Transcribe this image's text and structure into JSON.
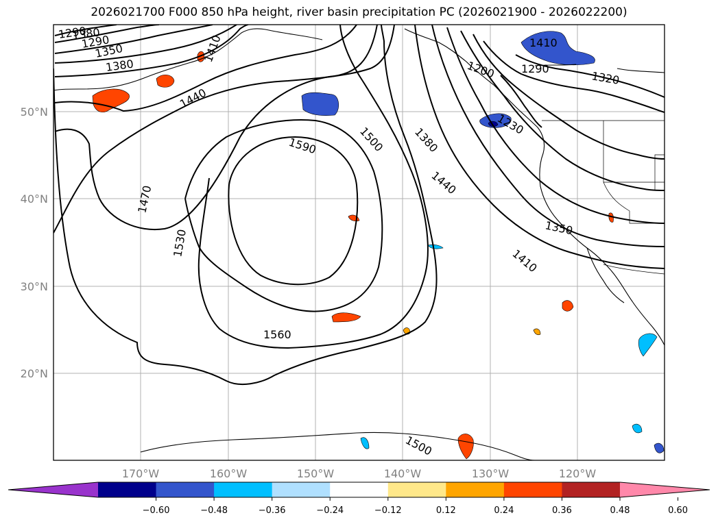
{
  "title": "2026021700 F000 850 hPa height, river basin precipitation PC (2026021900 - 2026022200)",
  "map": {
    "lon_ticks": [
      "170°W",
      "160°W",
      "150°W",
      "140°W",
      "130°W",
      "120°W"
    ],
    "lat_ticks": [
      "50°N",
      "40°N",
      "30°N",
      "20°N"
    ],
    "extent": {
      "lon": [
        -180,
        -110
      ],
      "lat": [
        10,
        60
      ]
    },
    "grid": true
  },
  "contour_labels": {
    "c1290a": "1290",
    "c1380a": "1380",
    "c1290b": "1290",
    "c1350a": "1350",
    "c1380b": "1380",
    "c1410a": "1410",
    "c1440a": "1440",
    "c1590": "1590",
    "c1500a": "1500",
    "c1380c": "1380",
    "c1440b": "1440",
    "c1470": "1470",
    "c1530": "1530",
    "c1560": "1560",
    "c1500b": "1500",
    "c1410b": "1410",
    "c1290c": "1290",
    "c1320": "1320",
    "c1230": "1230",
    "c1350b": "1350",
    "c1410c": "1410",
    "c1200": "1200"
  },
  "colorbar": {
    "colors": [
      "#9933cc",
      "#00008b",
      "#3355cc",
      "#00bfff",
      "#b0e0ff",
      "#ffffff",
      "#ffe88a",
      "#ffa500",
      "#ff4500",
      "#b22222",
      "#ff88aa"
    ],
    "labels": [
      "−0.60",
      "−0.48",
      "−0.36",
      "−0.24",
      "−0.12",
      "0.12",
      "0.24",
      "0.36",
      "0.48",
      "0.60"
    ]
  }
}
